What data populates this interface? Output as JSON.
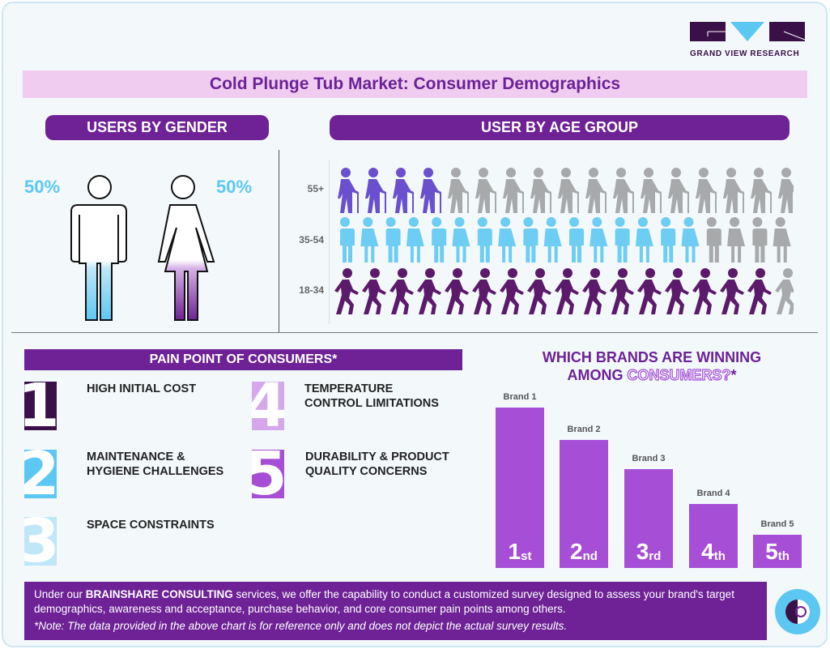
{
  "logo": {
    "text": "GRAND VIEW RESEARCH"
  },
  "title": "Cold Plunge Tub Market: Consumer Demographics",
  "gender": {
    "header": "USERS BY GENDER",
    "male_pct": "50%",
    "female_pct": "50%",
    "male_fill": 0.5,
    "female_fill": 0.5
  },
  "age": {
    "header": "USER BY AGE GROUP",
    "rows": [
      {
        "label": "55+",
        "highlighted": 4,
        "total": 17,
        "color": "#6a4fcf",
        "icon": "elderly-person-icon"
      },
      {
        "label": "35-54",
        "highlighted": 16,
        "total": 20,
        "color": "#6dcdf3",
        "icon": "couple-icon"
      },
      {
        "label": "18-34",
        "highlighted": 16,
        "total": 17,
        "color": "#5b1a6a",
        "icon": "walking-person-icon"
      }
    ],
    "gray": "#a7a9ab"
  },
  "pain": {
    "header": "PAIN POINT OF CONSUMERS*",
    "items": [
      {
        "num": "1",
        "text": "HIGH INITIAL COST",
        "color": "#3a1049"
      },
      {
        "num": "2",
        "text": "MAINTENANCE & HYGIENE CHALLENGES",
        "color": "#5cc8f2"
      },
      {
        "num": "3",
        "text": "SPACE CONSTRAINTS",
        "color": "#bfe7f8"
      },
      {
        "num": "4",
        "text": "TEMPERATURE CONTROL LIMITATIONS",
        "color": "#d4a8ea"
      },
      {
        "num": "5",
        "text": "DURABILITY & PRODUCT QUALITY CONCERNS",
        "color": "#a64fd6"
      }
    ]
  },
  "brands": {
    "title_1": "WHICH BRANDS ARE WINNING",
    "title_2a": "AMONG ",
    "title_2b": "CONSUMERS?",
    "title_2c": "*",
    "bars": [
      {
        "label": "Brand 1",
        "rank": "1",
        "suffix": "st"
      },
      {
        "label": "Brand 2",
        "rank": "2",
        "suffix": "nd"
      },
      {
        "label": "Brand 3",
        "rank": "3",
        "suffix": "rd"
      },
      {
        "label": "Brand 4",
        "rank": "4",
        "suffix": "th"
      },
      {
        "label": "Brand 5",
        "rank": "5",
        "suffix": "th"
      }
    ]
  },
  "footer": {
    "pre": "Under our ",
    "brand": "BRAINSHARE CONSULTING",
    "post": " services, we offer the capability to conduct a customized survey designed to assess your brand's target demographics, awareness and acceptance, purchase behavior, and core consumer pain points among others.",
    "note": "*Note: The data provided in the above chart is for reference only and does not depict the actual survey results."
  }
}
